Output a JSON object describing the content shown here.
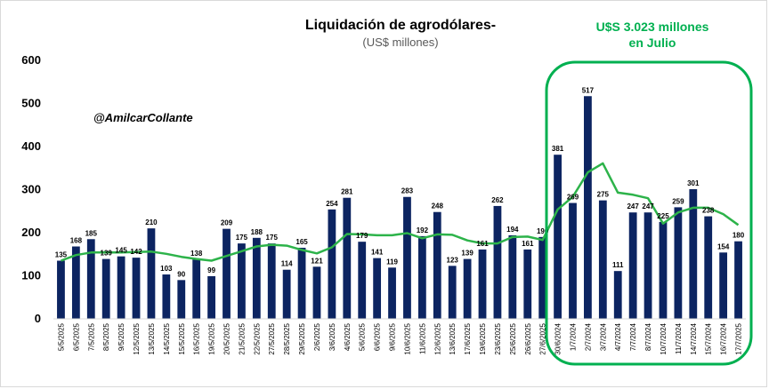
{
  "chart_data": {
    "type": "bar",
    "title": "Liquidación de agrodólares-",
    "subtitle": "(US$ millones)",
    "author": "@AmilcarCollante",
    "callout": [
      "U$S 3.023 millones",
      "en Julio"
    ],
    "ylim": [
      0,
      600
    ],
    "yticks": [
      0,
      100,
      200,
      300,
      400,
      500,
      600
    ],
    "colors": {
      "bars": "#0c2461",
      "line": "#2db34a",
      "callout": "#00b050"
    },
    "categories": [
      "5/5/2025",
      "6/5/2025",
      "7/5/2025",
      "8/5/2025",
      "9/5/2025",
      "12/5/2025",
      "13/5/2025",
      "14/5/2025",
      "15/5/2025",
      "16/5/2025",
      "19/5/2025",
      "20/5/2025",
      "21/5/2025",
      "22/5/2025",
      "27/5/2025",
      "28/5/2025",
      "29/5/2025",
      "2/6/2025",
      "3/6/2025",
      "4/6/2025",
      "5/6/2025",
      "6/6/2025",
      "9/6/2025",
      "10/6/2025",
      "11/6/2025",
      "12/6/2025",
      "13/6/2025",
      "17/6/2025",
      "19/6/2025",
      "23/6/2025",
      "25/6/2025",
      "26/6/2025",
      "27/6/2025",
      "30/6/2024",
      "1/7/2024",
      "2/7/2024",
      "3/7/2024",
      "4/7/2024",
      "7/7/2024",
      "8/7/2024",
      "10/7/2024",
      "11/7/2024",
      "14/7/2024",
      "15/7/2024",
      "16/7/2024",
      "17/7/2025"
    ],
    "series": [
      {
        "values": [
          135,
          168,
          185,
          139,
          145,
          142,
          210,
          103,
          90,
          138,
          99,
          209,
          175,
          188,
          175,
          114,
          165,
          121,
          254,
          281,
          179,
          141,
          119,
          283,
          192,
          248,
          123,
          139,
          161,
          262,
          194,
          161,
          190,
          381,
          269,
          517,
          275,
          111,
          247,
          247,
          225,
          259,
          301,
          238,
          154,
          180
        ]
      },
      {
        "type": "line",
        "values": [
          135,
          148,
          154,
          154,
          154,
          155,
          156,
          151,
          144,
          139,
          135,
          146,
          157,
          168,
          172,
          170,
          160,
          152,
          166,
          197,
          196,
          194,
          194,
          199,
          187,
          196,
          195,
          182,
          175,
          175,
          190,
          191,
          183,
          254,
          283,
          340,
          361,
          293,
          288,
          280,
          221,
          247,
          258,
          258,
          243,
          218
        ]
      }
    ]
  }
}
